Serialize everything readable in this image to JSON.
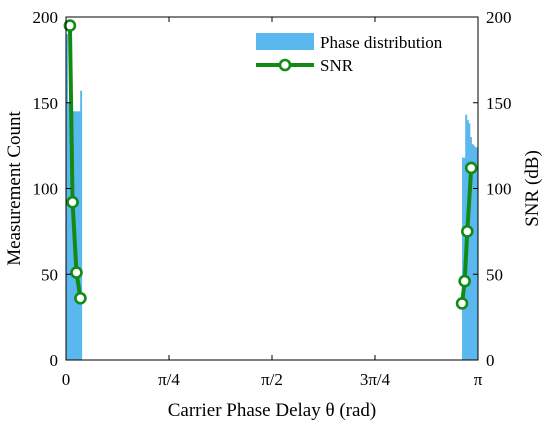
{
  "chart_data": {
    "type": "bar+line",
    "title": "",
    "xlabel": "Carrier Phase Delay θ (rad)",
    "ylabel_left": "Measurement Count",
    "ylabel_right": "SNR (dB)",
    "xlim": [
      0,
      3.14159
    ],
    "ylim_left": [
      0,
      200
    ],
    "ylim_right": [
      0,
      200
    ],
    "x_ticks": [
      {
        "value": 0,
        "label": "0"
      },
      {
        "value": 0.7854,
        "label": "π/4"
      },
      {
        "value": 1.5708,
        "label": "π/2"
      },
      {
        "value": 2.3562,
        "label": "3π/4"
      },
      {
        "value": 3.14159,
        "label": "π"
      }
    ],
    "y_ticks_left": [
      0,
      50,
      100,
      150,
      200
    ],
    "y_ticks_right": [
      0,
      50,
      100,
      150,
      200
    ],
    "grid": false,
    "legend_position": "top-right",
    "series": [
      {
        "name": "Phase distribution",
        "kind": "histogram",
        "color": "#5ab8ee",
        "bins": [
          {
            "x0": 0.0,
            "x1": 0.012,
            "value": 190
          },
          {
            "x0": 0.012,
            "x1": 0.024,
            "value": 150
          },
          {
            "x0": 0.024,
            "x1": 0.036,
            "value": 146
          },
          {
            "x0": 0.036,
            "x1": 0.048,
            "value": 145
          },
          {
            "x0": 0.048,
            "x1": 0.06,
            "value": 145
          },
          {
            "x0": 0.06,
            "x1": 0.072,
            "value": 145
          },
          {
            "x0": 0.072,
            "x1": 0.084,
            "value": 145
          },
          {
            "x0": 0.084,
            "x1": 0.096,
            "value": 145
          },
          {
            "x0": 0.096,
            "x1": 0.108,
            "value": 145
          },
          {
            "x0": 0.108,
            "x1": 0.12,
            "value": 157
          },
          {
            "x0": 3.02,
            "x1": 3.032,
            "value": 118
          },
          {
            "x0": 3.032,
            "x1": 3.044,
            "value": 118
          },
          {
            "x0": 3.044,
            "x1": 3.056,
            "value": 143
          },
          {
            "x0": 3.056,
            "x1": 3.068,
            "value": 140
          },
          {
            "x0": 3.068,
            "x1": 3.08,
            "value": 138
          },
          {
            "x0": 3.08,
            "x1": 3.092,
            "value": 130
          },
          {
            "x0": 3.092,
            "x1": 3.104,
            "value": 126
          },
          {
            "x0": 3.104,
            "x1": 3.116,
            "value": 125
          },
          {
            "x0": 3.116,
            "x1": 3.128,
            "value": 124
          },
          {
            "x0": 3.128,
            "x1": 3.14159,
            "value": 124
          }
        ]
      },
      {
        "name": "SNR",
        "kind": "line",
        "axis": "right",
        "color": "#138a13",
        "points": [
          {
            "x": 0.03,
            "y": 195
          },
          {
            "x": 0.05,
            "y": 92
          },
          {
            "x": 0.08,
            "y": 51
          },
          {
            "x": 0.11,
            "y": 36
          },
          {
            "x": 3.02,
            "y": 33
          },
          {
            "x": 3.04,
            "y": 46
          },
          {
            "x": 3.06,
            "y": 75
          },
          {
            "x": 3.09,
            "y": 112
          }
        ]
      }
    ]
  }
}
